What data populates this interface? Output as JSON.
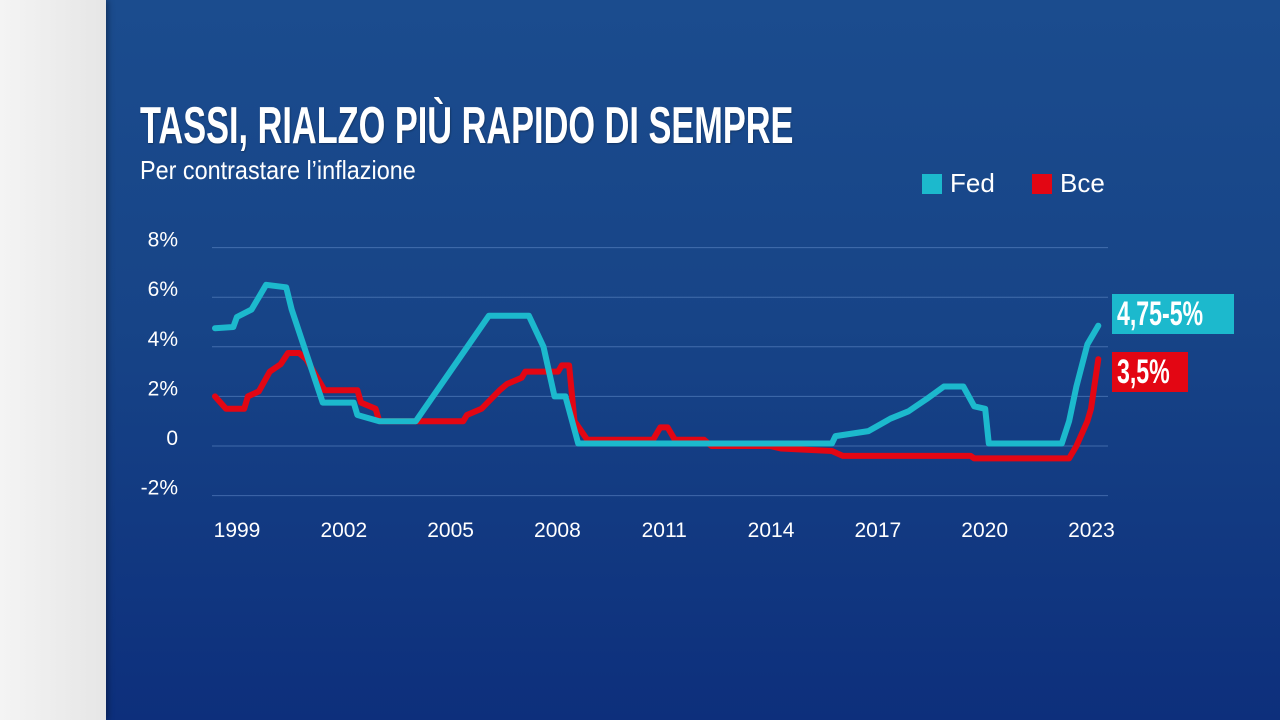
{
  "chart_data": {
    "type": "line",
    "title": "TASSI, RIALZO PIÙ RAPIDO DI SEMPRE",
    "subtitle": "Per contrastare l’inflazione",
    "xlabel": "",
    "ylabel": "",
    "xlim": [
      1999,
      2023.3
    ],
    "ylim": [
      -2,
      8
    ],
    "grid": true,
    "legend_placement": "top-right",
    "y_ticks": [
      {
        "value": 8,
        "label": "8%"
      },
      {
        "value": 6,
        "label": "6%"
      },
      {
        "value": 4,
        "label": "4%"
      },
      {
        "value": 2,
        "label": "2%"
      },
      {
        "value": 0,
        "label": "0"
      },
      {
        "value": -2,
        "label": "-2%"
      }
    ],
    "x_ticks": [
      "1999",
      "2002",
      "2005",
      "2008",
      "2011",
      "2014",
      "2017",
      "2020",
      "2023"
    ],
    "series": [
      {
        "name": "Fed",
        "color": "#1cb9cd",
        "end_label": "4,75-5%",
        "x": [
          1999.0,
          1999.5,
          1999.6,
          2000.0,
          2000.4,
          2000.95,
          2001.1,
          2001.95,
          2002.8,
          2002.9,
          2003.5,
          2004.5,
          2006.5,
          2007.6,
          2008.0,
          2008.3,
          2008.6,
          2008.95,
          2012.0,
          2015.9,
          2016.0,
          2016.9,
          2017.5,
          2018.0,
          2018.2,
          2018.5,
          2018.97,
          2019.5,
          2019.8,
          2020.1,
          2020.2,
          2022.2,
          2022.4,
          2022.6,
          2022.9,
          2023.2
        ],
        "y": [
          4.75,
          4.8,
          5.2,
          5.5,
          6.5,
          6.4,
          5.5,
          1.75,
          1.75,
          1.25,
          1.0,
          1.0,
          5.25,
          5.25,
          4.0,
          2.0,
          2.0,
          0.1,
          0.1,
          0.1,
          0.4,
          0.6,
          1.1,
          1.4,
          1.6,
          1.9,
          2.4,
          2.4,
          1.6,
          1.5,
          0.1,
          0.1,
          1.0,
          2.4,
          4.1,
          4.85
        ]
      },
      {
        "name": "Bce",
        "color": "#e30613",
        "end_label": "3,5%",
        "x": [
          1999.0,
          1999.3,
          1999.8,
          1999.9,
          2000.2,
          2000.5,
          2000.8,
          2001.0,
          2001.3,
          2001.5,
          2001.9,
          2002.0,
          2002.9,
          2003.0,
          2003.4,
          2003.5,
          2005.8,
          2005.9,
          2006.3,
          2006.8,
          2007.0,
          2007.4,
          2007.5,
          2008.4,
          2008.5,
          2008.7,
          2008.85,
          2009.2,
          2011.0,
          2011.2,
          2011.4,
          2011.6,
          2012.4,
          2012.6,
          2014.2,
          2014.5,
          2015.9,
          2016.2,
          2019.7,
          2019.8,
          2022.4,
          2022.6,
          2022.9,
          2023.0,
          2023.2
        ],
        "y": [
          2.0,
          1.5,
          1.5,
          2.0,
          2.2,
          3.0,
          3.3,
          3.75,
          3.75,
          3.5,
          2.5,
          2.25,
          2.25,
          1.75,
          1.5,
          1.0,
          1.0,
          1.25,
          1.5,
          2.25,
          2.5,
          2.75,
          3.0,
          3.0,
          3.25,
          3.25,
          1.0,
          0.25,
          0.25,
          0.75,
          0.75,
          0.25,
          0.25,
          0.0,
          0.0,
          -0.1,
          -0.2,
          -0.4,
          -0.4,
          -0.5,
          -0.5,
          0.0,
          1.0,
          1.5,
          3.5
        ]
      }
    ]
  }
}
